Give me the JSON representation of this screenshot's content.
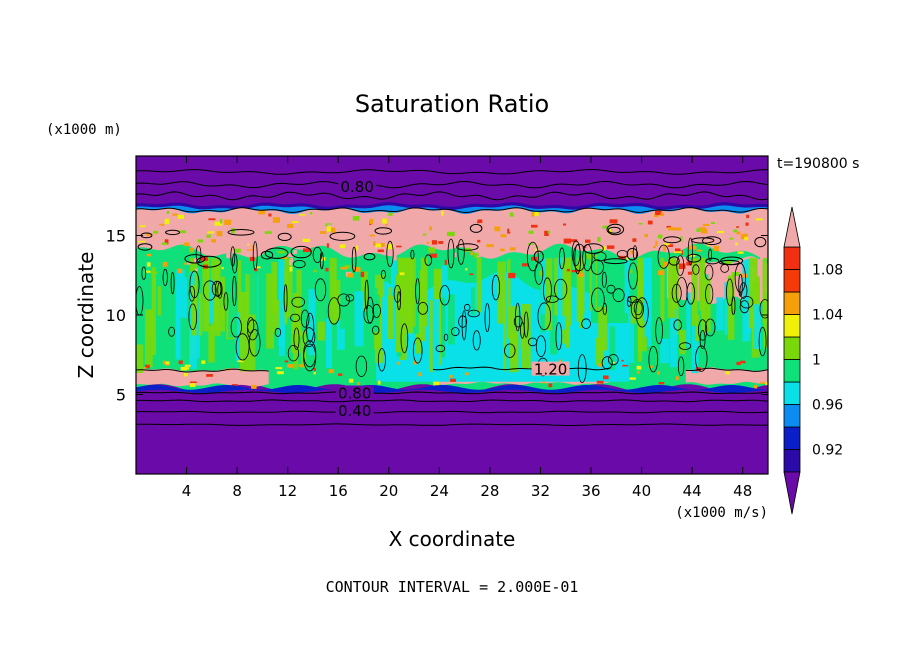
{
  "chart_data": {
    "type": "heatmap",
    "title": "Saturation Ratio",
    "xlabel": "X coordinate",
    "ylabel": "Z coordinate",
    "x_unit_label": "(x1000 m/s)",
    "y_unit_label": "(x1000 m)",
    "time_label": "t=190800 s",
    "footer": "CONTOUR INTERVAL = 2.000E-01",
    "xlim": [
      0,
      50
    ],
    "ylim": [
      0,
      20
    ],
    "x_ticks": [
      4,
      8,
      12,
      16,
      20,
      24,
      28,
      32,
      36,
      40,
      44,
      48
    ],
    "x_tick_labels": [
      "4",
      "8",
      "12",
      "16",
      "20",
      "24",
      "28",
      "32",
      "36",
      "40",
      "44",
      "48"
    ],
    "y_ticks": [
      5,
      10,
      15
    ],
    "y_tick_labels": [
      "5",
      "10",
      "15"
    ],
    "colorbar": {
      "levels": [
        0.9,
        0.92,
        0.94,
        0.96,
        0.98,
        1.0,
        1.02,
        1.04,
        1.06,
        1.08,
        1.1
      ],
      "labels": [
        {
          "value": 0.92,
          "text": "0.92"
        },
        {
          "value": 0.96,
          "text": "0.96"
        },
        {
          "value": 1.0,
          "text": "1"
        },
        {
          "value": 1.04,
          "text": "1.04"
        },
        {
          "value": 1.08,
          "text": "1.08"
        }
      ],
      "colors": [
        "#6a0aa8",
        "#2b0aa8",
        "#0a1fc8",
        "#0a8cf0",
        "#0ae0e8",
        "#10e07a",
        "#7ad80a",
        "#f0f00a",
        "#f5a00a",
        "#f53a0a",
        "#f03010",
        "#f0a8a8"
      ],
      "extend": "both"
    },
    "regions": [
      {
        "z": [
          0,
          5.2
        ],
        "level": "below 0.90"
      },
      {
        "z": [
          5.2,
          6.2
        ],
        "level": "1.10 and above (x 12-26, 37-50)"
      },
      {
        "z": [
          6.2,
          13.5
        ],
        "level": "0.98 to 1.02"
      },
      {
        "z": [
          13.5,
          16.5
        ],
        "level": "1.10 and above with 1.02-1.08 streaks"
      },
      {
        "z": [
          16.5,
          20
        ],
        "level": "below 0.90"
      }
    ],
    "contour_labels": [
      {
        "x": 17.5,
        "z": 18.0,
        "text": "0.80"
      },
      {
        "x": 17.3,
        "z": 5.0,
        "text": "0.80"
      },
      {
        "x": 17.3,
        "z": 3.9,
        "text": "0.40"
      },
      {
        "x": 32.8,
        "z": 6.5,
        "text": "1.20"
      }
    ]
  }
}
